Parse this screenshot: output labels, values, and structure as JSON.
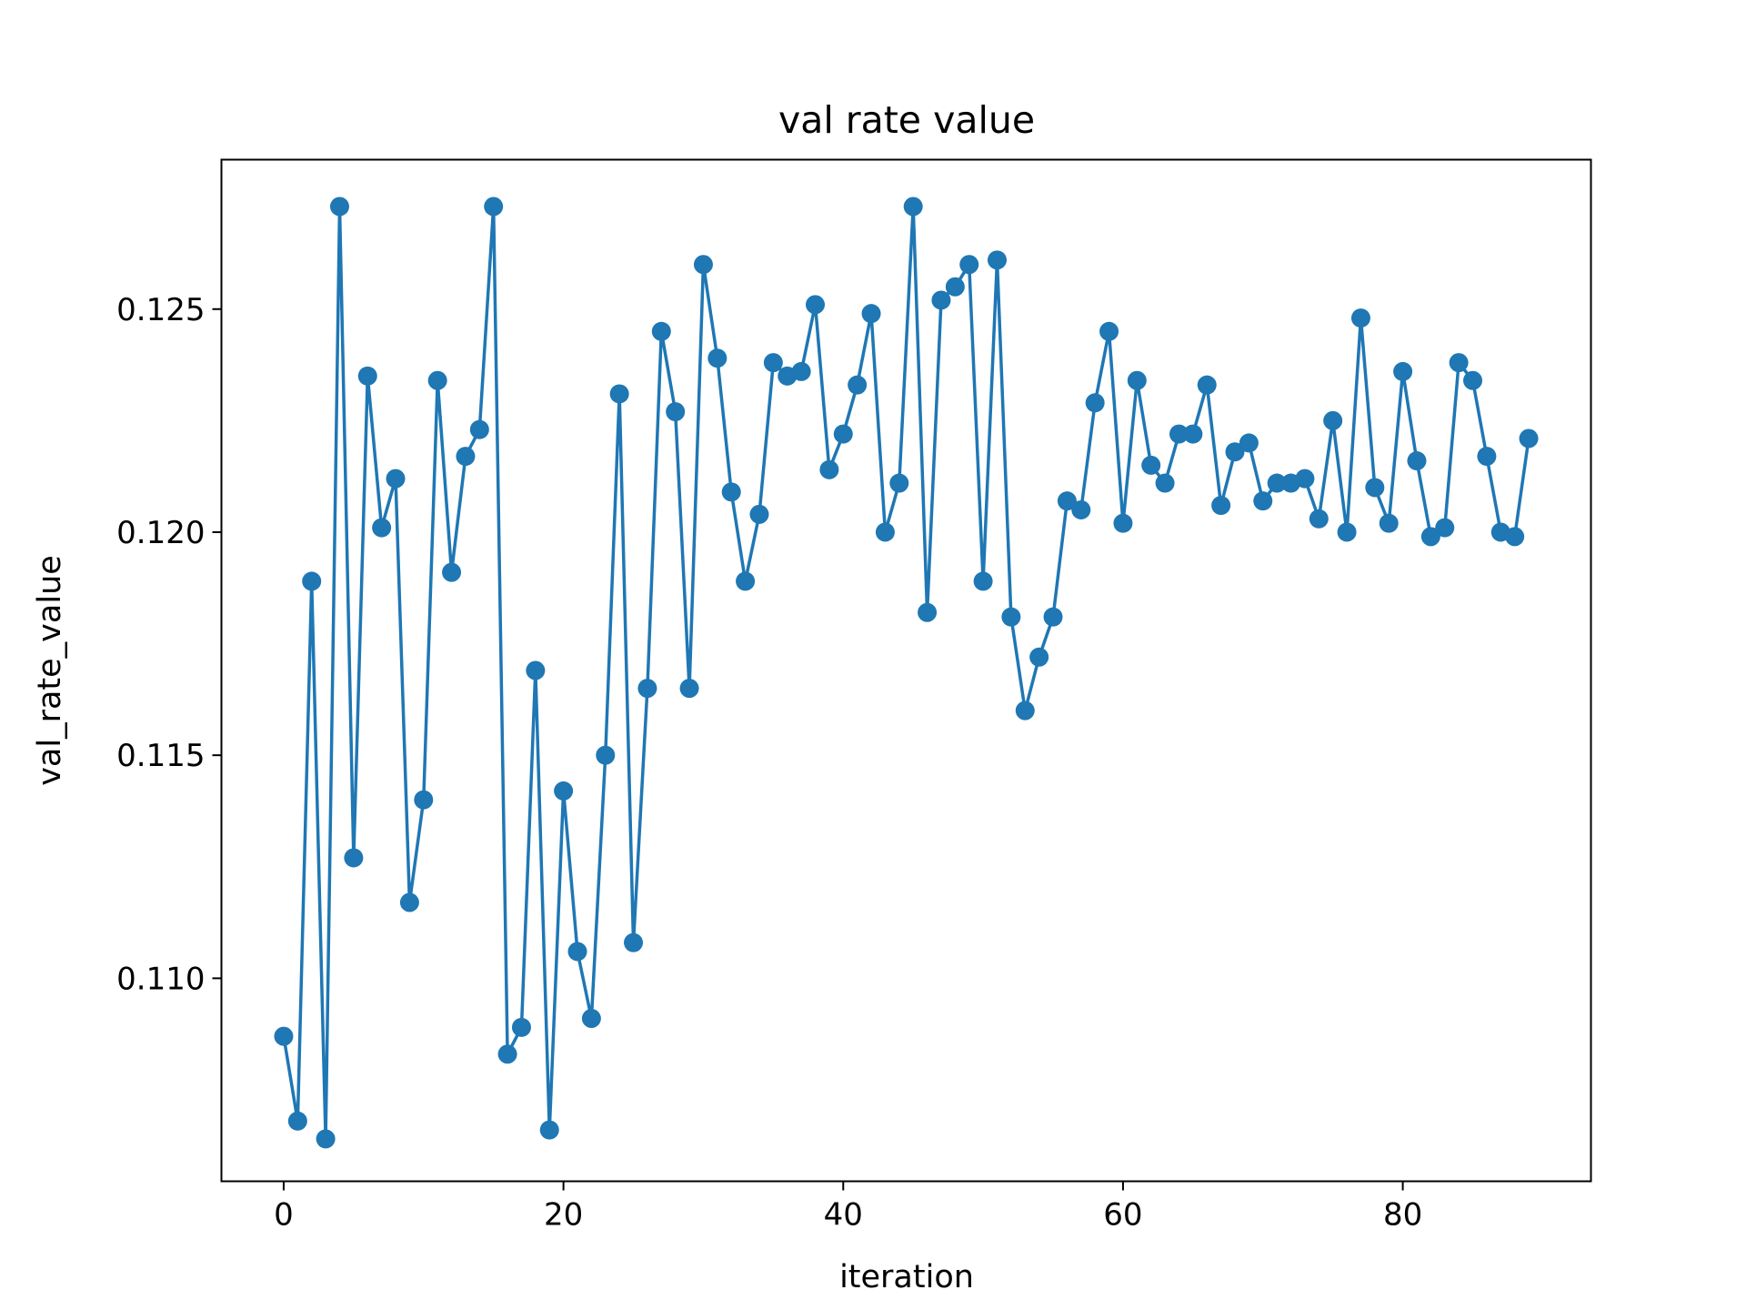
{
  "chart_data": {
    "type": "line",
    "title": "val rate value",
    "xlabel": "iteration",
    "ylabel": "val_rate_value",
    "xlim": [
      -4.45,
      93.45
    ],
    "ylim": [
      0.10545,
      0.12835
    ],
    "xticks": [
      0,
      20,
      40,
      60,
      80
    ],
    "xtick_labels": [
      "0",
      "20",
      "40",
      "60",
      "80"
    ],
    "yticks": [
      0.11,
      0.115,
      0.12,
      0.125
    ],
    "ytick_labels": [
      "0.110",
      "0.115",
      "0.120",
      "0.125"
    ],
    "grid": false,
    "legend": "none",
    "line_color": "#1f77b4",
    "marker": "circle",
    "series": [
      {
        "x": [
          0,
          1,
          2,
          3,
          4,
          5,
          6,
          7,
          8,
          9,
          10,
          11,
          12,
          13,
          14,
          15,
          16,
          17,
          18,
          19,
          20,
          21,
          22,
          23,
          24,
          25,
          26,
          27,
          28,
          29,
          30,
          31,
          32,
          33,
          34,
          35,
          36,
          37,
          38,
          39,
          40,
          41,
          42,
          43,
          44,
          45,
          46,
          47,
          48,
          49,
          50,
          51,
          52,
          53,
          54,
          55,
          56,
          57,
          58,
          59,
          60,
          61,
          62,
          63,
          64,
          65,
          66,
          67,
          68,
          69,
          70,
          71,
          72,
          73,
          74,
          75,
          76,
          77,
          78,
          79,
          80,
          81,
          82,
          83,
          84,
          85,
          86,
          87,
          88,
          89
        ],
        "values": [
          0.1087,
          0.1068,
          0.1189,
          0.1064,
          0.1273,
          0.1127,
          0.1235,
          0.1201,
          0.1212,
          0.1117,
          0.114,
          0.1234,
          0.1191,
          0.1217,
          0.1223,
          0.1273,
          0.1083,
          0.1089,
          0.1169,
          0.1066,
          0.1142,
          0.1106,
          0.1091,
          0.115,
          0.1231,
          0.1108,
          0.1165,
          0.1245,
          0.1227,
          0.1165,
          0.126,
          0.1239,
          0.1209,
          0.1189,
          0.1204,
          0.1238,
          0.1235,
          0.1236,
          0.1251,
          0.1214,
          0.1222,
          0.1233,
          0.1249,
          0.12,
          0.1211,
          0.1273,
          0.1182,
          0.1252,
          0.1255,
          0.126,
          0.1189,
          0.1261,
          0.1181,
          0.116,
          0.1172,
          0.1181,
          0.1207,
          0.1205,
          0.1229,
          0.1245,
          0.1202,
          0.1234,
          0.1215,
          0.1211,
          0.1222,
          0.1222,
          0.1233,
          0.1206,
          0.1218,
          0.122,
          0.1207,
          0.1211,
          0.1211,
          0.1212,
          0.1203,
          0.1225,
          0.12,
          0.1248,
          0.121,
          0.1202,
          0.1236,
          0.1216,
          0.1199,
          0.1201,
          0.1238,
          0.1234,
          0.1217,
          0.12,
          0.1199,
          0.1221
        ]
      }
    ]
  }
}
